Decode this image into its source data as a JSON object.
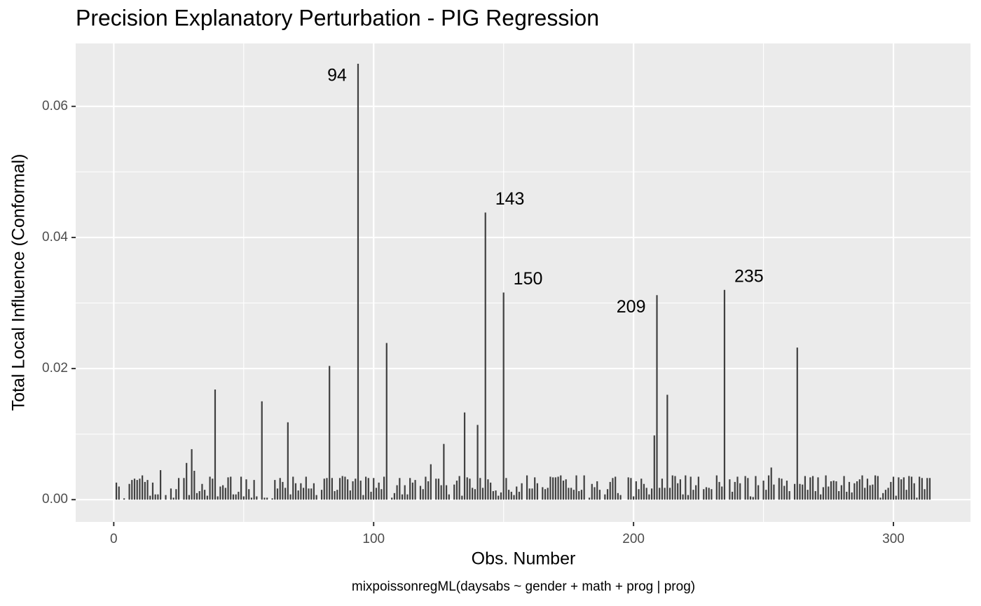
{
  "chart_data": {
    "type": "needle",
    "title": "Precision Explanatory Perturbation - PIG Regression",
    "xlabel": "Obs. Number",
    "ylabel": "Total Local Influence (Conformal)",
    "caption": "mixpoissonregML(daysabs ~ gender + math + prog | prog)",
    "color": "#404040",
    "grid": true,
    "xlim": [
      -14.65,
      329.65
    ],
    "ylim": [
      -0.0034,
      0.0696
    ],
    "xticks": [
      0,
      100,
      200,
      300
    ],
    "yticks": [
      {
        "value": 0,
        "label": "0.00"
      },
      0.02,
      0.04,
      0.06
    ],
    "xminor": [
      50,
      150,
      250
    ],
    "yminor": [
      0.01,
      0.03,
      0.05
    ],
    "annotations": [
      {
        "text": "94",
        "x": 94
      },
      {
        "text": "143",
        "x": 143
      },
      {
        "text": "150",
        "x": 150
      },
      {
        "text": "209",
        "x": 209
      },
      {
        "text": "235",
        "x": 235
      }
    ],
    "x": [
      1,
      2,
      3,
      4,
      5,
      6,
      7,
      8,
      9,
      10,
      11,
      12,
      13,
      14,
      15,
      16,
      17,
      18,
      19,
      20,
      21,
      22,
      23,
      24,
      25,
      26,
      27,
      28,
      29,
      30,
      31,
      32,
      33,
      34,
      35,
      36,
      37,
      38,
      39,
      40,
      41,
      42,
      43,
      44,
      45,
      46,
      47,
      48,
      49,
      50,
      51,
      52,
      53,
      54,
      55,
      56,
      57,
      58,
      59,
      60,
      61,
      62,
      63,
      64,
      65,
      66,
      67,
      68,
      69,
      70,
      71,
      72,
      73,
      74,
      75,
      76,
      77,
      78,
      79,
      80,
      81,
      82,
      83,
      84,
      85,
      86,
      87,
      88,
      89,
      90,
      91,
      92,
      93,
      94,
      95,
      96,
      97,
      98,
      99,
      100,
      101,
      102,
      103,
      104,
      105,
      106,
      107,
      108,
      109,
      110,
      111,
      112,
      113,
      114,
      115,
      116,
      117,
      118,
      119,
      120,
      121,
      122,
      123,
      124,
      125,
      126,
      127,
      128,
      129,
      130,
      131,
      132,
      133,
      134,
      135,
      136,
      137,
      138,
      139,
      140,
      141,
      142,
      143,
      144,
      145,
      146,
      147,
      148,
      149,
      150,
      151,
      152,
      153,
      154,
      155,
      156,
      157,
      158,
      159,
      160,
      161,
      162,
      163,
      164,
      165,
      166,
      167,
      168,
      169,
      170,
      171,
      172,
      173,
      174,
      175,
      176,
      177,
      178,
      179,
      180,
      181,
      182,
      183,
      184,
      185,
      186,
      187,
      188,
      189,
      190,
      191,
      192,
      193,
      194,
      195,
      196,
      197,
      198,
      199,
      200,
      201,
      202,
      203,
      204,
      205,
      206,
      207,
      208,
      209,
      210,
      211,
      212,
      213,
      214,
      215,
      216,
      217,
      218,
      219,
      220,
      221,
      222,
      223,
      224,
      225,
      226,
      227,
      228,
      229,
      230,
      231,
      232,
      233,
      234,
      235,
      236,
      237,
      238,
      239,
      240,
      241,
      242,
      243,
      244,
      245,
      246,
      247,
      248,
      249,
      250,
      251,
      252,
      253,
      254,
      255,
      256,
      257,
      258,
      259,
      260,
      261,
      262,
      263,
      264,
      265,
      266,
      267,
      268,
      269,
      270,
      271,
      272,
      273,
      274,
      275,
      276,
      277,
      278,
      279,
      280,
      281,
      282,
      283,
      284,
      285,
      286,
      287,
      288,
      289,
      290,
      291,
      292,
      293,
      294,
      295,
      296,
      297,
      298,
      299,
      300,
      301,
      302,
      303,
      304,
      305,
      306,
      307,
      308,
      309,
      310,
      311,
      312,
      313,
      314
    ],
    "values": [
      0.0026,
      0.002,
      0,
      0.0002,
      0,
      0.0024,
      0.003,
      0.0032,
      0.003,
      0.0032,
      0.0037,
      0.0027,
      0.003,
      0.0006,
      0.0026,
      0.0008,
      0.0008,
      0.0045,
      0,
      0.0007,
      0,
      0.0017,
      0.0003,
      0.0016,
      0.0033,
      0,
      0.0033,
      0.0056,
      0.0007,
      0.0077,
      0.0044,
      0.001,
      0.0013,
      0.0024,
      0.0015,
      0.0006,
      0.0035,
      0.0032,
      0.0168,
      0.0005,
      0.002,
      0.0022,
      0.0018,
      0.0034,
      0.0035,
      0.0008,
      0.0008,
      0.0012,
      0.0035,
      0.0005,
      0.0031,
      0.0016,
      0.0003,
      0.003,
      0.0005,
      0,
      0.015,
      0.0003,
      0.0003,
      0,
      0.0002,
      0.003,
      0.0017,
      0.0033,
      0.0027,
      0.0018,
      0.0118,
      0.0008,
      0.0035,
      0.0025,
      0.0014,
      0.0025,
      0.0018,
      0.0035,
      0.0017,
      0.0017,
      0.0025,
      0.0007,
      0,
      0.0015,
      0.0032,
      0.0033,
      0.0204,
      0.0033,
      0.0013,
      0.0015,
      0.0033,
      0.0036,
      0.0035,
      0.0031,
      0.0014,
      0.0028,
      0.0032,
      0.0665,
      0.0029,
      0.0007,
      0.0035,
      0.0033,
      0.0012,
      0.0033,
      0.0018,
      0.0026,
      0.0016,
      0.0035,
      0.0239,
      0,
      0.0003,
      0.001,
      0.0022,
      0.0033,
      0.0008,
      0.0022,
      0.0008,
      0.0033,
      0.0026,
      0.003,
      0,
      0.0021,
      0.0016,
      0.0035,
      0.0028,
      0.0054,
      0,
      0.0032,
      0.0032,
      0.0022,
      0.0085,
      0.0022,
      0.0008,
      0,
      0.0023,
      0.0029,
      0.0036,
      0.0006,
      0.0133,
      0.0034,
      0.0032,
      0.0018,
      0.0016,
      0.0114,
      0.0033,
      0.0018,
      0.0438,
      0.0031,
      0.0026,
      0.0013,
      0.0014,
      0.0006,
      0.0011,
      0.0316,
      0.0033,
      0.0015,
      0.0012,
      0.0007,
      0.002,
      0.0012,
      0.0025,
      0,
      0.0037,
      0.0017,
      0.0017,
      0.0034,
      0.0025,
      0,
      0.0019,
      0.0016,
      0.0018,
      0.0035,
      0.0034,
      0.0034,
      0.0035,
      0.0037,
      0.0029,
      0.0031,
      0.0018,
      0.0018,
      0.0015,
      0.0037,
      0.0013,
      0.0015,
      0.0037,
      0,
      0.0003,
      0.0024,
      0.0019,
      0.0028,
      0.0015,
      0,
      0.0008,
      0.0016,
      0.0027,
      0.0033,
      0.0035,
      0.001,
      0.0007,
      0,
      0,
      0.0034,
      0.0033,
      0.0005,
      0.0028,
      0.0016,
      0.0032,
      0.0024,
      0.0018,
      0.0008,
      0.0017,
      0.0098,
      0.0312,
      0.0018,
      0.0032,
      0.0018,
      0.016,
      0.0018,
      0.0037,
      0.0036,
      0.0025,
      0.0031,
      0.0008,
      0.0037,
      0.0007,
      0.0035,
      0.0015,
      0.0022,
      0.0035,
      0,
      0.0016,
      0.0019,
      0.0018,
      0.0016,
      0,
      0.0037,
      0.0027,
      0.002,
      0.032,
      0,
      0.0031,
      0.0012,
      0.0027,
      0.0035,
      0.0025,
      0,
      0.0036,
      0.0033,
      0.0005,
      0.0004,
      0.0036,
      0.0022,
      0,
      0.0029,
      0.0015,
      0.0037,
      0.0049,
      0.0023,
      0,
      0.0033,
      0.0032,
      0.0021,
      0.0029,
      0.0013,
      0,
      0.0024,
      0.0232,
      0.0024,
      0.0023,
      0.0036,
      0.0015,
      0.0034,
      0.0036,
      0.0013,
      0.0034,
      0.0008,
      0.0019,
      0.0037,
      0.002,
      0.0028,
      0.0029,
      0.0028,
      0.0013,
      0.0022,
      0.0036,
      0.0012,
      0.0027,
      0.0011,
      0.0025,
      0.0028,
      0.0031,
      0.0037,
      0.0018,
      0.0032,
      0.0022,
      0.0023,
      0.0037,
      0.0036,
      0.0003,
      0.001,
      0.0015,
      0.0018,
      0.0027,
      0.0035,
      0.0006,
      0.0034,
      0.0031,
      0.0034,
      0.0015,
      0.0036,
      0.0035,
      0.0025,
      0.0003,
      0.0035,
      0.0033,
      0.0016,
      0.0033,
      0.0033
    ]
  }
}
